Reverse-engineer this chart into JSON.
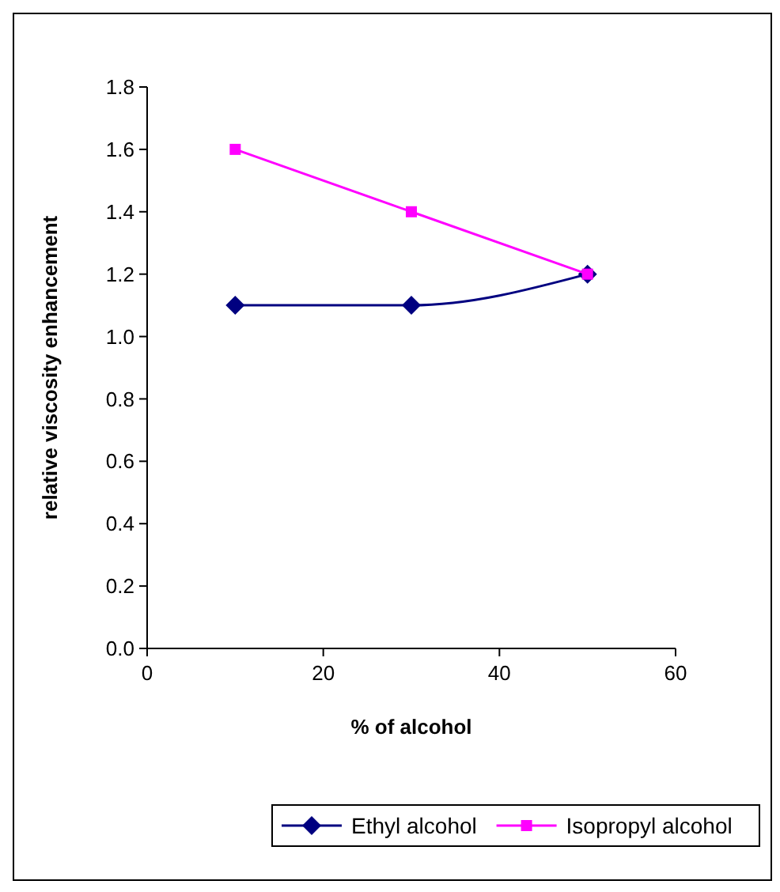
{
  "chart_data": {
    "type": "line",
    "xlabel": "% of alcohol",
    "ylabel": "relative viscosity enhancement",
    "x": [
      10,
      30,
      50
    ],
    "series": [
      {
        "name": "Ethyl alcohol",
        "color": "#000080",
        "values": [
          1.1,
          1.1,
          1.2
        ],
        "marker": "diamond"
      },
      {
        "name": "Isopropyl alcohol",
        "color": "#ff00ff",
        "values": [
          1.6,
          1.4,
          1.2
        ],
        "marker": "square"
      }
    ],
    "xlim": [
      0,
      60
    ],
    "xticks": [
      0,
      20,
      40,
      60
    ],
    "ylim": [
      0,
      1.8
    ],
    "yticks": [
      {
        "value": 0,
        "label": "0.0"
      },
      {
        "value": 0.2,
        "label": "0.2"
      },
      {
        "value": 0.4,
        "label": "0.4"
      },
      {
        "value": 0.6,
        "label": "0.6"
      },
      {
        "value": 0.8,
        "label": "0.8"
      },
      {
        "value": 1,
        "label": "1.0"
      },
      {
        "value": 1.2,
        "label": "1.2"
      },
      {
        "value": 1.4,
        "label": "1.4"
      },
      {
        "value": 1.6,
        "label": "1.6"
      },
      {
        "value": 1.8,
        "label": "1.8"
      }
    ],
    "grid": false,
    "legend": "bottom"
  }
}
